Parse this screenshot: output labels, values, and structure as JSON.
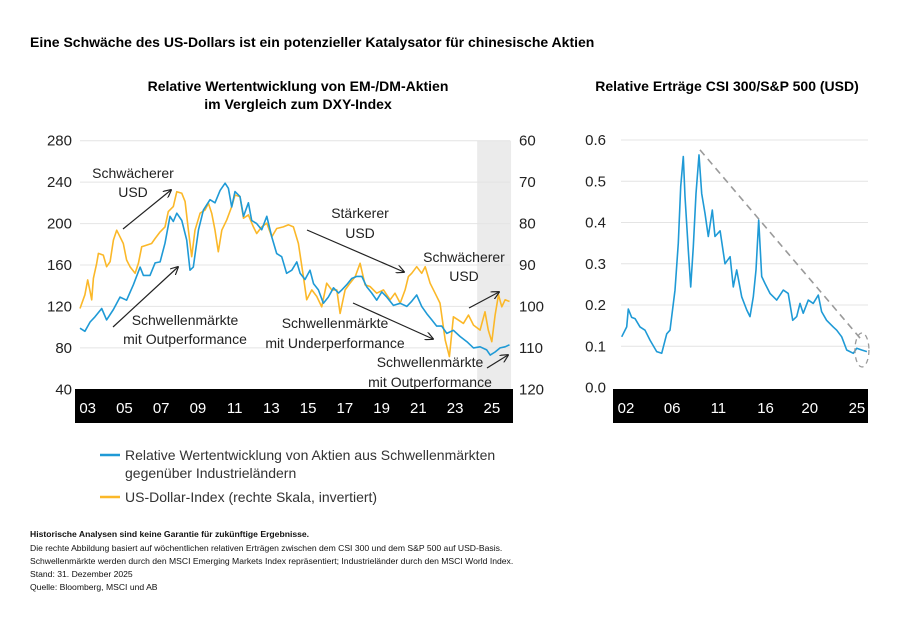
{
  "title": "Eine Schwäche des US-Dollars ist ein potenzieller Katalysator für chinesische Aktien",
  "colors": {
    "em_dm": "#1f9ad6",
    "dxy": "#fbb829",
    "trend": "#9a9a9a",
    "shade": "#ebebeb",
    "axis_bar": "#000000"
  },
  "chart_data": [
    {
      "type": "line",
      "title": [
        "Relative Wertentwicklung von EM-/DM-Aktien",
        "im Vergleich zum DXY-Index"
      ],
      "x_tick_labels": [
        "03",
        "05",
        "07",
        "09",
        "11",
        "13",
        "15",
        "17",
        "19",
        "21",
        "23",
        "25"
      ],
      "x_ticks": [
        2003,
        2005,
        2007,
        2009,
        2011,
        2013,
        2015,
        2017,
        2019,
        2021,
        2023,
        2025
      ],
      "xlim": [
        2002.58,
        2025.99
      ],
      "ylim_left": [
        40,
        280
      ],
      "y_ticks_left": [
        40,
        80,
        120,
        160,
        200,
        240,
        280
      ],
      "ylim_right": [
        60,
        120
      ],
      "y_ticks_right": [
        60,
        70,
        80,
        90,
        100,
        110,
        120
      ],
      "right_axis_inverted": true,
      "grid": true,
      "shaded_period": [
        2024.2,
        2025.99
      ],
      "series": [
        {
          "name": "Relative Wertentwicklung von Aktien aus Schwellenmärkten gegenüber Industrieländern",
          "axis": "left",
          "color": "#1f9ad6",
          "x": [
            2002.58,
            2002.85,
            2003.13,
            2003.4,
            2003.76,
            2004.03,
            2004.4,
            2004.76,
            2005.12,
            2005.49,
            2005.85,
            2006.03,
            2006.39,
            2006.67,
            2006.94,
            2007.21,
            2007.48,
            2007.66,
            2007.85,
            2008.12,
            2008.39,
            2008.57,
            2008.75,
            2009.03,
            2009.3,
            2009.66,
            2009.93,
            2010.21,
            2010.48,
            2010.66,
            2010.84,
            2011.02,
            2011.29,
            2011.48,
            2011.75,
            2011.93,
            2012.2,
            2012.47,
            2012.75,
            2013.02,
            2013.29,
            2013.56,
            2013.83,
            2014.11,
            2014.38,
            2014.56,
            2014.83,
            2015.1,
            2015.29,
            2015.56,
            2015.83,
            2016.1,
            2016.38,
            2016.65,
            2016.83,
            2017.1,
            2017.37,
            2017.65,
            2017.92,
            2018.19,
            2018.46,
            2018.73,
            2019.01,
            2019.28,
            2019.64,
            2020.01,
            2020.37,
            2020.64,
            2020.91,
            2021.18,
            2021.46,
            2021.73,
            2022.0,
            2022.27,
            2022.55,
            2022.91,
            2023.27,
            2023.64,
            2024.0,
            2024.36,
            2024.72,
            2024.91,
            2025.18,
            2025.45,
            2025.72,
            2025.96
          ],
          "y": [
            99,
            96,
            105,
            110,
            118,
            107,
            117,
            129,
            126,
            141,
            158,
            150,
            150,
            162,
            163,
            181,
            207,
            202,
            210,
            203,
            184,
            155,
            158,
            194,
            213,
            223,
            220,
            232,
            239,
            234,
            216,
            231,
            226,
            207,
            220,
            203,
            200,
            194,
            207,
            187,
            171,
            168,
            152,
            155,
            163,
            152,
            146,
            155,
            142,
            136,
            123,
            129,
            138,
            133,
            136,
            141,
            147,
            149,
            149,
            139,
            133,
            126,
            134,
            129,
            121,
            123,
            120,
            125,
            131,
            120,
            113,
            107,
            101,
            101,
            94,
            97,
            91,
            86,
            80,
            81,
            78,
            73,
            76,
            80,
            81,
            83
          ]
        },
        {
          "name": "US-Dollar-Index (rechte Skala, invertiert)",
          "axis": "right",
          "color": "#fbb829",
          "x": [
            2002.58,
            2002.85,
            2003.0,
            2003.13,
            2003.22,
            2003.31,
            2003.49,
            2003.58,
            2003.85,
            2004.03,
            2004.22,
            2004.4,
            2004.58,
            2004.76,
            2004.94,
            2005.12,
            2005.3,
            2005.58,
            2005.76,
            2005.94,
            2006.21,
            2006.48,
            2006.67,
            2006.94,
            2007.21,
            2007.39,
            2007.66,
            2007.85,
            2008.12,
            2008.3,
            2008.48,
            2008.66,
            2008.84,
            2009.12,
            2009.39,
            2009.57,
            2009.75,
            2009.93,
            2010.11,
            2010.3,
            2010.57,
            2010.84,
            2011.02,
            2011.29,
            2011.48,
            2011.75,
            2012.02,
            2012.2,
            2012.47,
            2012.75,
            2013.02,
            2013.29,
            2013.65,
            2013.93,
            2014.2,
            2014.47,
            2014.74,
            2014.92,
            2015.2,
            2015.47,
            2015.74,
            2016.01,
            2016.28,
            2016.56,
            2016.74,
            2017.01,
            2017.28,
            2017.56,
            2017.83,
            2018.1,
            2018.37,
            2018.73,
            2019.1,
            2019.46,
            2019.73,
            2020.01,
            2020.28,
            2020.46,
            2020.64,
            2020.91,
            2021.18,
            2021.37,
            2021.64,
            2021.91,
            2022.18,
            2022.46,
            2022.69,
            2022.91,
            2023.18,
            2023.45,
            2023.73,
            2024.0,
            2024.36,
            2024.63,
            2024.81,
            2025.0,
            2025.18,
            2025.36,
            2025.54,
            2025.72,
            2025.96
          ],
          "y": [
            100.5,
            97.2,
            93.6,
            96.4,
            98.4,
            93.2,
            89.6,
            87.2,
            87.6,
            90.4,
            89.2,
            84.0,
            81.6,
            83.2,
            84.8,
            88.8,
            90.4,
            92.0,
            89.6,
            85.6,
            85.2,
            84.8,
            83.6,
            82.0,
            80.8,
            77.1,
            75.9,
            72.3,
            72.7,
            74.7,
            81.6,
            88.0,
            81.6,
            77.5,
            76.7,
            75.1,
            77.5,
            81.6,
            86.8,
            81.6,
            79.1,
            75.9,
            73.1,
            73.5,
            78.7,
            77.9,
            80.8,
            82.4,
            80.8,
            79.9,
            83.2,
            81.2,
            80.8,
            80.3,
            80.8,
            84.8,
            92.8,
            98.4,
            96.0,
            97.6,
            100.1,
            94.4,
            96.0,
            96.0,
            101.7,
            96.0,
            94.4,
            92.8,
            89.6,
            94.8,
            95.2,
            96.8,
            96.0,
            98.4,
            96.8,
            99.2,
            96.0,
            92.8,
            92.0,
            90.4,
            92.0,
            90.4,
            94.4,
            96.8,
            99.2,
            108.1,
            112.1,
            102.5,
            103.3,
            104.1,
            102.1,
            104.5,
            105.7,
            101.3,
            105.7,
            108.5,
            102.1,
            97.2,
            100.1,
            98.4,
            98.8
          ]
        }
      ],
      "annotations": [
        {
          "lines": [
            "Schwächerer",
            "USD"
          ]
        },
        {
          "lines": [
            "Schwellenmärkte",
            "mit Outperformance"
          ]
        },
        {
          "lines": [
            "Stärkerer",
            "USD"
          ]
        },
        {
          "lines": [
            "Schwellenmärkte",
            "mit Underperformance"
          ]
        },
        {
          "lines": [
            "Schwächerer",
            "USD"
          ]
        },
        {
          "lines": [
            "Schwellenmärkte",
            "mit Outperformance"
          ]
        }
      ],
      "legend": [
        "Relative Wertentwicklung von Aktien aus Schwellenmärkten",
        "gegenüber Industrieländern",
        "US-Dollar-Index (rechte Skala, invertiert)"
      ]
    },
    {
      "type": "line",
      "title": "Relative Erträge CSI 300/S&P 500 (USD)",
      "x_tick_labels": [
        "02",
        "06",
        "11",
        "16",
        "20",
        "25"
      ],
      "x_ticks": [
        2002,
        2006.6,
        2011.2,
        2015.9,
        2020.3,
        2025
      ],
      "xlim": [
        2001.57,
        2025.99
      ],
      "ylim": [
        0.0,
        0.6
      ],
      "y_tick_labels": [
        "0.0",
        "0.1",
        "0.2",
        "0.3",
        "0.4",
        "0.5",
        "0.6"
      ],
      "grid": true,
      "series": [
        {
          "color": "#1f9ad6",
          "x": [
            2001.57,
            2002.07,
            2002.23,
            2002.57,
            2002.9,
            2003.39,
            2003.89,
            2004.39,
            2005.06,
            2005.56,
            2006.05,
            2006.38,
            2006.88,
            2007.21,
            2007.45,
            2007.71,
            2007.88,
            2008.21,
            2008.44,
            2008.7,
            2008.97,
            2009.27,
            2009.54,
            2009.87,
            2010.2,
            2010.6,
            2010.86,
            2011.37,
            2011.86,
            2012.37,
            2012.69,
            2013.03,
            2013.52,
            2014.02,
            2014.35,
            2014.68,
            2014.95,
            2015.22,
            2015.52,
            2015.84,
            2016.34,
            2017.01,
            2017.67,
            2018.16,
            2018.6,
            2019.0,
            2019.33,
            2019.65,
            2020.16,
            2020.65,
            2021.15,
            2021.48,
            2021.98,
            2022.64,
            2022.99,
            2023.48,
            2023.98,
            2024.64,
            2024.98,
            2025.48,
            2025.99
          ],
          "y": [
            0.123,
            0.147,
            0.19,
            0.17,
            0.167,
            0.147,
            0.139,
            0.115,
            0.087,
            0.083,
            0.13,
            0.139,
            0.236,
            0.35,
            0.487,
            0.56,
            0.463,
            0.333,
            0.244,
            0.341,
            0.47,
            0.564,
            0.47,
            0.422,
            0.366,
            0.43,
            0.366,
            0.38,
            0.3,
            0.317,
            0.244,
            0.285,
            0.22,
            0.188,
            0.172,
            0.22,
            0.285,
            0.406,
            0.269,
            0.252,
            0.228,
            0.212,
            0.236,
            0.228,
            0.163,
            0.172,
            0.204,
            0.18,
            0.212,
            0.204,
            0.224,
            0.184,
            0.163,
            0.147,
            0.139,
            0.123,
            0.091,
            0.083,
            0.095,
            0.091,
            0.087
          ]
        }
      ],
      "trendline": {
        "from": [
          2009.37,
          0.576
        ],
        "to": [
          2025.48,
          0.115
        ]
      },
      "highlight_circle": [
        2025.5,
        0.091
      ]
    }
  ],
  "footnotes": {
    "disclaimer": "Historische Analysen sind keine Garantie für zukünftige Ergebnisse.",
    "lines": [
      "Die rechte Abbildung basiert auf wöchentlichen relativen Erträgen zwischen dem CSI 300 und dem S&P 500 auf USD-Basis.",
      "Schwellenmärkte werden durch den MSCI Emerging Markets Index repräsentiert; Industrieländer durch den MSCI World Index.",
      "Stand: 31. Dezember 2025",
      "Quelle: Bloomberg, MSCI und AB"
    ]
  }
}
